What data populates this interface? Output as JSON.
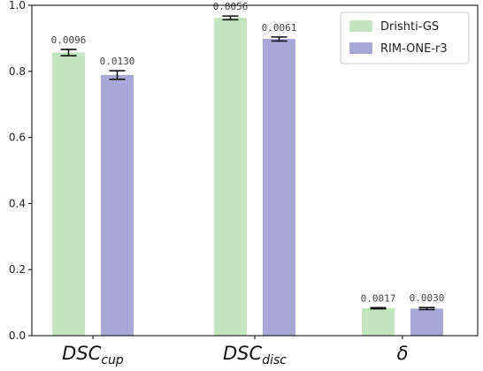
{
  "chart_data": {
    "type": "bar",
    "categories": [
      {
        "main": "DSC",
        "sub": "cup"
      },
      {
        "main": "DSC",
        "sub": "disc"
      },
      {
        "main": "δ",
        "sub": ""
      }
    ],
    "series": [
      {
        "name": "Drishti-GS",
        "color": "#c3e3c1",
        "values": [
          0.857,
          0.962,
          0.083
        ],
        "errors": [
          0.0096,
          0.0056,
          0.0017
        ],
        "error_labels": [
          "0.0096",
          "0.0056",
          "0.0017"
        ]
      },
      {
        "name": "RIM-ONE-r3",
        "color": "#a9a6d8",
        "values": [
          0.789,
          0.898,
          0.082
        ],
        "errors": [
          0.013,
          0.0061,
          0.003
        ],
        "error_labels": [
          "0.0130",
          "0.0061",
          "0.0030"
        ]
      }
    ],
    "ylim": [
      0,
      1.0
    ],
    "yticks": [
      "0.0",
      "0.2",
      "0.4",
      "0.6",
      "0.8",
      "1.0"
    ],
    "legend_position": "top-right",
    "grid": false
  }
}
